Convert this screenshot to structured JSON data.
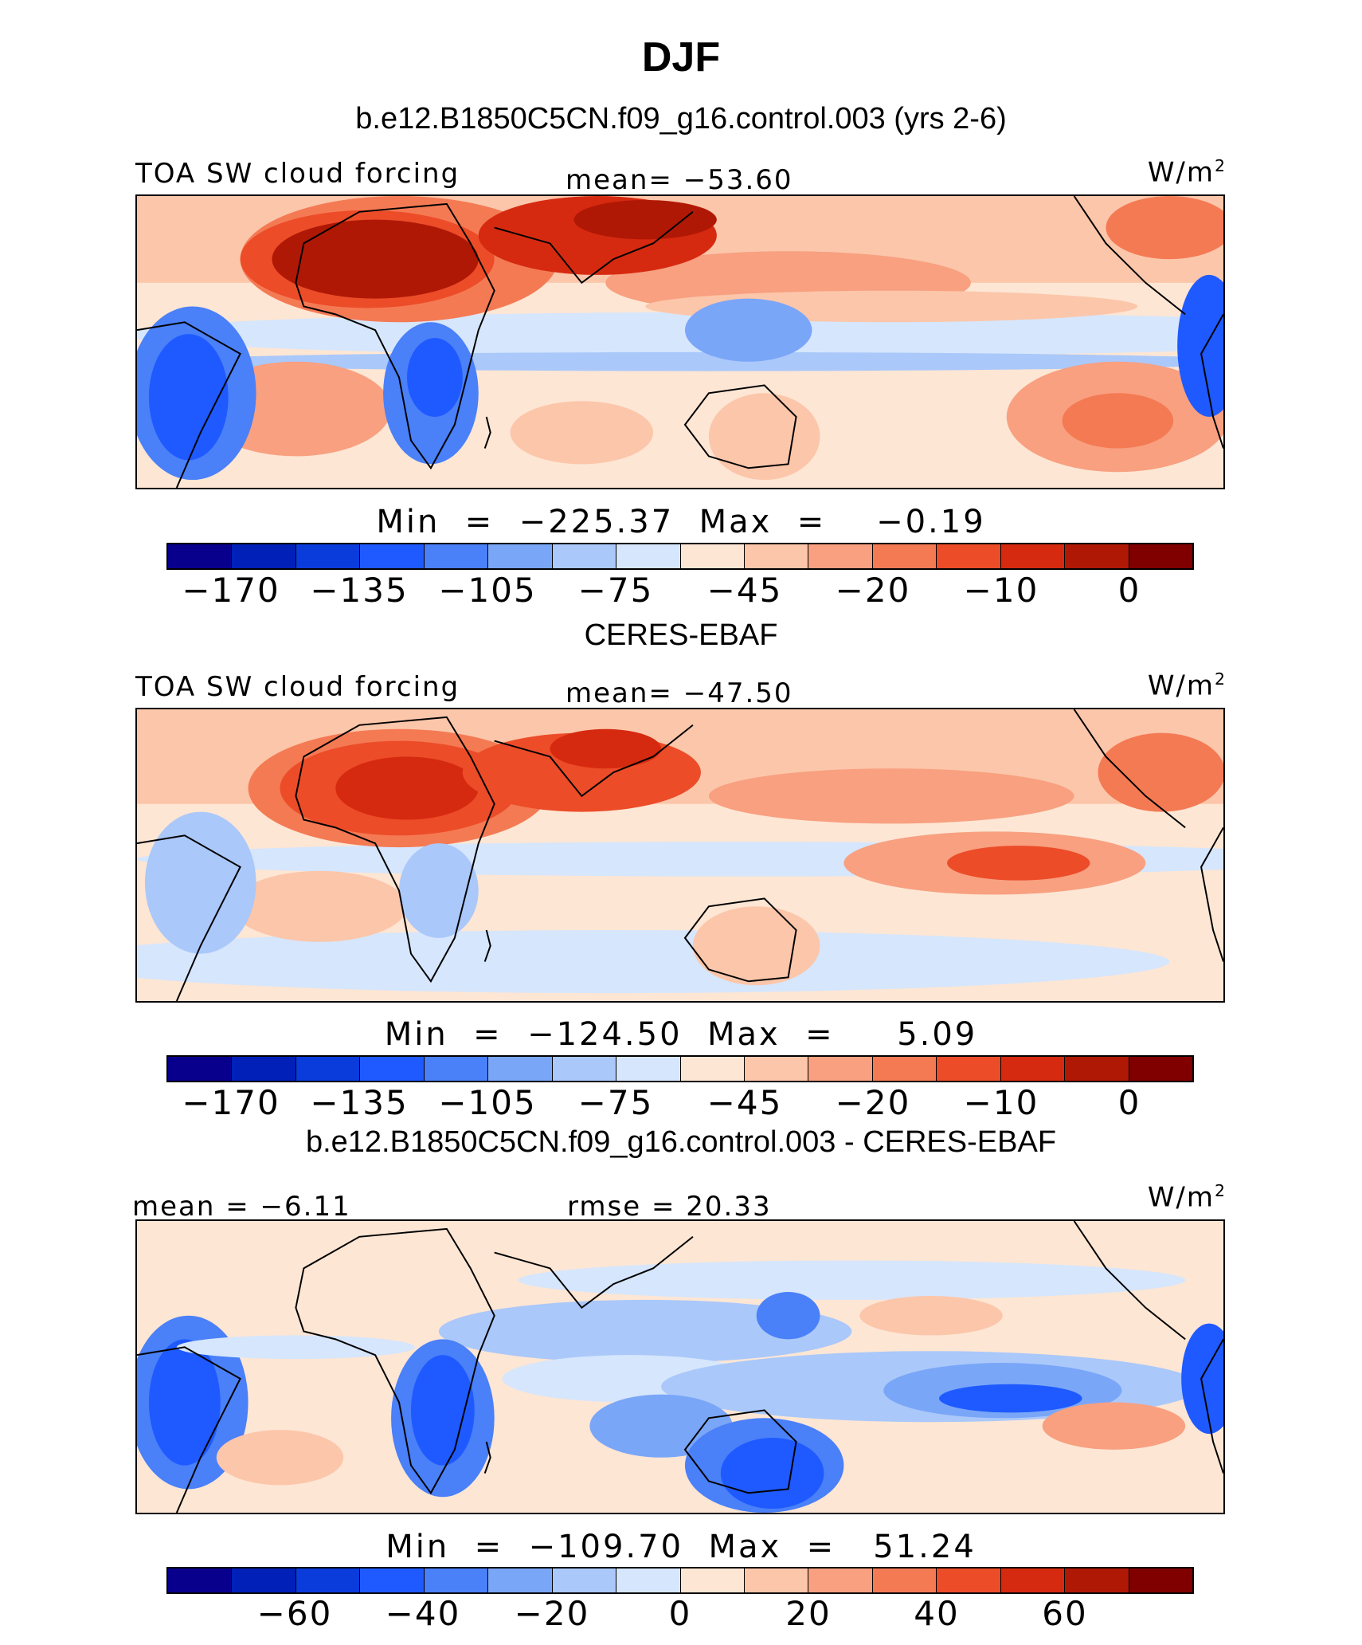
{
  "page_title": "DJF",
  "colors": {
    "field_levels": [
      "#08008c",
      "#0020b8",
      "#0a3cdc",
      "#1e5aff",
      "#4a80f8",
      "#7aa6f8",
      "#aac8fa",
      "#d6e6fc",
      "#fde6d4",
      "#fcc6aa",
      "#f8a080",
      "#f47a54",
      "#ec4c28",
      "#d62a10",
      "#b01806",
      "#800000"
    ],
    "land_outline": "#000000"
  },
  "panels": [
    {
      "title": "b.e12.B1850C5CN.f09_g16.control.003 (yrs 2-6)",
      "left_label": "TOA SW cloud forcing",
      "center_label": "mean= −53.60",
      "units_base": "W/m",
      "units_exp": "2",
      "minmax": "Min  =  −225.37  Max  =    −0.19",
      "colorbar_ticks": [
        "−170",
        "−135",
        "−105",
        "−75",
        "−45",
        "−20",
        "−10",
        "0"
      ]
    },
    {
      "title": "CERES-EBAF",
      "left_label": "TOA SW cloud forcing",
      "center_label": "mean= −47.50",
      "units_base": "W/m",
      "units_exp": "2",
      "minmax": "Min  =  −124.50  Max  =     5.09",
      "colorbar_ticks": [
        "−170",
        "−135",
        "−105",
        "−75",
        "−45",
        "−20",
        "−10",
        "0"
      ]
    },
    {
      "title": "b.e12.B1850C5CN.f09_g16.control.003 - CERES-EBAF",
      "left_label": "mean =   −6.11",
      "center_label": "rmse =   20.33",
      "units_base": "W/m",
      "units_exp": "2",
      "minmax": "Min  =  −109.70  Max  =   51.24",
      "colorbar_ticks": [
        "−60",
        "−40",
        "−20",
        "0",
        "20",
        "40",
        "60"
      ]
    }
  ]
}
